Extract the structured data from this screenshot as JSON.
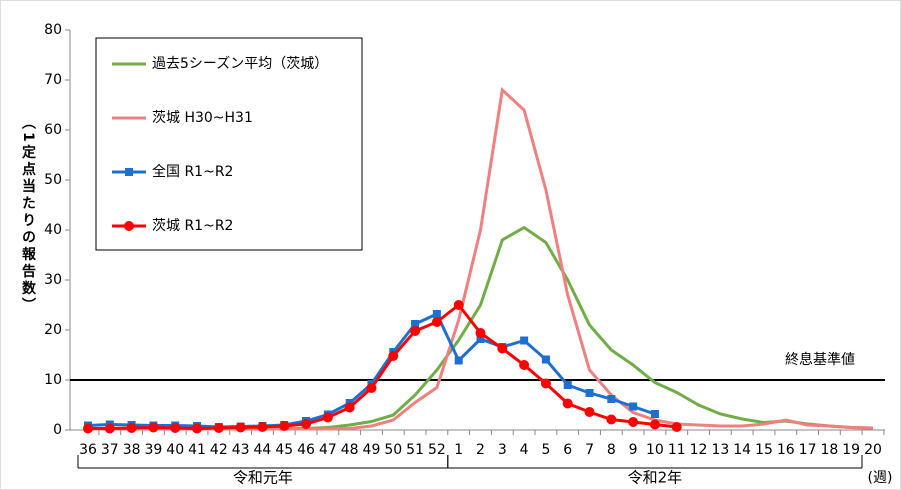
{
  "chart_data": {
    "type": "line",
    "y_label": "（1定点当たりの報告数）",
    "categories": [
      "36",
      "37",
      "38",
      "39",
      "40",
      "41",
      "42",
      "43",
      "44",
      "45",
      "46",
      "47",
      "48",
      "49",
      "50",
      "51",
      "52",
      "1",
      "2",
      "3",
      "4",
      "5",
      "6",
      "7",
      "8",
      "9",
      "10",
      "11",
      "12",
      "13",
      "14",
      "15",
      "16",
      "17",
      "18",
      "19",
      "20"
    ],
    "x_unit": "(週)",
    "groups": [
      {
        "label": "令和元年",
        "from": 0,
        "to": 16
      },
      {
        "label": "令和2年",
        "from": 17,
        "to": 36
      }
    ],
    "ylim": [
      0,
      80
    ],
    "yticks": [
      0,
      10,
      20,
      30,
      40,
      50,
      60,
      70,
      80
    ],
    "reference_line": {
      "value": 10,
      "label": "終息基準値"
    },
    "series": [
      {
        "name": "過去5シーズン平均（茨城）",
        "color": "#70ad47",
        "marker": "none",
        "values": [
          0.3,
          0.3,
          0.3,
          0.3,
          0.3,
          0.3,
          0.3,
          0.3,
          0.3,
          0.3,
          0.3,
          0.5,
          1,
          1.7,
          3,
          7,
          12,
          18,
          25,
          38,
          40.5,
          37.5,
          30,
          21,
          16,
          13,
          9.5,
          7.5,
          5,
          3.2,
          2.2,
          1.5,
          1.8,
          1.2,
          0.8,
          0.5,
          0.4
        ]
      },
      {
        "name": "茨城 H30~H31",
        "color": "#f08080",
        "marker": "none",
        "values": [
          0.2,
          0.2,
          0.2,
          0.2,
          0.2,
          0.2,
          0.2,
          0.2,
          0.2,
          0.2,
          0.2,
          0.2,
          0.3,
          0.8,
          2,
          5.5,
          8.5,
          22,
          40,
          68,
          64,
          48,
          27,
          12,
          7,
          3.5,
          2,
          1.2,
          1,
          0.8,
          0.8,
          1.2,
          2,
          1,
          0.8,
          0.5,
          0.4
        ]
      },
      {
        "name": "全国 R1~R2",
        "color": "#1f6fd1",
        "marker": "square",
        "values": [
          0.9,
          1.1,
          1.0,
          0.9,
          0.9,
          0.8,
          0.6,
          0.7,
          0.8,
          1.0,
          1.8,
          3.1,
          5.4,
          9.2,
          15.6,
          21.2,
          23.2,
          13.9,
          18.2,
          16.6,
          17.9,
          14.1,
          9.0,
          7.4,
          6.2,
          4.7,
          3.2,
          null,
          null,
          null,
          null,
          null,
          null,
          null,
          null,
          null,
          null
        ]
      },
      {
        "name": "茨城 R1~R2",
        "color": "#ff0000",
        "marker": "circle",
        "values": [
          0.3,
          0.3,
          0.4,
          0.5,
          0.4,
          0.3,
          0.4,
          0.5,
          0.6,
          0.8,
          1.2,
          2.5,
          4.5,
          8.4,
          14.8,
          19.8,
          21.6,
          25.0,
          19.4,
          16.3,
          13.0,
          9.3,
          5.3,
          3.6,
          2.1,
          1.6,
          1.1,
          0.6,
          null,
          null,
          null,
          null,
          null,
          null,
          null,
          null,
          null
        ]
      }
    ]
  }
}
